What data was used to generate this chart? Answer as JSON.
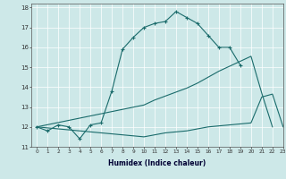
{
  "xlabel": "Humidex (Indice chaleur)",
  "xlim": [
    -0.5,
    23
  ],
  "ylim": [
    11,
    18.2
  ],
  "yticks": [
    11,
    12,
    13,
    14,
    15,
    16,
    17,
    18
  ],
  "xticks": [
    0,
    1,
    2,
    3,
    4,
    5,
    6,
    7,
    8,
    9,
    10,
    11,
    12,
    13,
    14,
    15,
    16,
    17,
    18,
    19,
    20,
    21,
    22,
    23
  ],
  "bg_color": "#cde8e8",
  "line_color": "#1a6b6b",
  "grid_color": "#ffffff",
  "curves": [
    {
      "x": [
        0,
        1,
        2,
        3,
        4,
        5,
        6,
        7,
        8,
        9,
        10,
        11,
        12,
        13,
        14,
        15,
        16,
        17,
        18,
        19
      ],
      "y": [
        12.0,
        11.8,
        12.1,
        12.0,
        11.4,
        12.1,
        12.2,
        13.8,
        15.9,
        16.5,
        17.0,
        17.2,
        17.3,
        17.8,
        17.5,
        17.2,
        16.6,
        16.0,
        16.0,
        15.1
      ],
      "marker": true
    },
    {
      "x": [
        0,
        10,
        11,
        12,
        13,
        14,
        15,
        16,
        17,
        18,
        19,
        20,
        21,
        22
      ],
      "y": [
        12.0,
        13.1,
        13.35,
        13.55,
        13.75,
        13.95,
        14.2,
        14.5,
        14.8,
        15.05,
        15.3,
        15.55,
        13.7,
        12.0
      ],
      "marker": false
    },
    {
      "x": [
        0,
        10,
        11,
        12,
        13,
        14,
        15,
        16,
        17,
        18,
        19,
        20,
        21,
        22,
        23
      ],
      "y": [
        12.0,
        11.5,
        11.6,
        11.7,
        11.75,
        11.8,
        11.9,
        12.0,
        12.05,
        12.1,
        12.15,
        12.2,
        13.5,
        13.65,
        12.0
      ],
      "marker": false
    }
  ]
}
